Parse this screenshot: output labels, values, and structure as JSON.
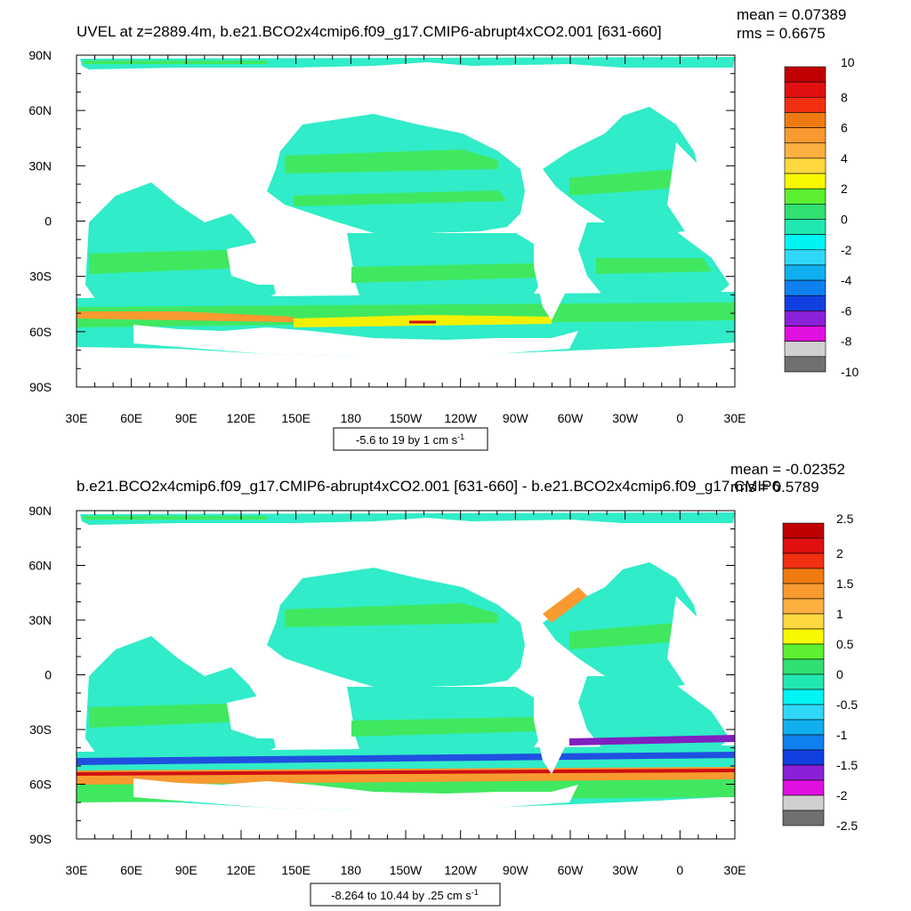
{
  "chart_data": [
    {
      "type": "heatmap",
      "title": "UVEL at z=2889.4m, b.e21.BCO2x4cmip6.f09_g17.CMIP6-abrupt4xCO2.001 [631-660]",
      "stat_mean": "mean = 0.07389",
      "stat_rms": "rms = 0.6675",
      "range_note": "-5.6 to 19 by 1 cm s",
      "range_unit_sup": "-1",
      "x_ticks": [
        "30E",
        "60E",
        "90E",
        "120E",
        "150E",
        "180",
        "150W",
        "120W",
        "90W",
        "60W",
        "30W",
        "0",
        "30E"
      ],
      "y_ticks": [
        "90N",
        "60N",
        "30N",
        "0",
        "30S",
        "60S",
        "90S"
      ],
      "colorbar_labels": [
        "10",
        "8",
        "6",
        "4",
        "2",
        "0",
        "-2",
        "-4",
        "-6",
        "-8",
        "-10"
      ],
      "colorbar_levels": [
        -10,
        -9,
        -8,
        -7,
        -6,
        -5,
        -4,
        -3,
        -2,
        -1,
        0,
        1,
        2,
        3,
        4,
        5,
        6,
        7,
        8,
        9,
        10
      ]
    },
    {
      "type": "heatmap",
      "title": "b.e21.BCO2x4cmip6.f09_g17.CMIP6-abrupt4xCO2.001 [631-660] - b.e21.BCO2x4cmip6.f09_g17.CMIP6",
      "stat_mean": "mean = -0.02352",
      "stat_rms": "rms = 0.5789",
      "range_note": "-8.264 to 10.44 by .25 cm s",
      "range_unit_sup": "-1",
      "x_ticks": [
        "30E",
        "60E",
        "90E",
        "120E",
        "150E",
        "180",
        "150W",
        "120W",
        "90W",
        "60W",
        "30W",
        "0",
        "30E"
      ],
      "y_ticks": [
        "90N",
        "60N",
        "30N",
        "0",
        "30S",
        "60S",
        "90S"
      ],
      "colorbar_labels": [
        "2.5",
        "2",
        "1.5",
        "1",
        "0.5",
        "0",
        "-0.5",
        "-1",
        "-1.5",
        "-2",
        "-2.5"
      ],
      "colorbar_levels": [
        -2.5,
        -2.25,
        -2,
        -1.75,
        -1.5,
        -1.25,
        -1,
        -0.75,
        -0.5,
        -0.25,
        0,
        0.25,
        0.5,
        0.75,
        1,
        1.25,
        1.5,
        1.75,
        2,
        2.25,
        2.5
      ]
    }
  ],
  "colors": {
    "colorbar": [
      "#c00000",
      "#e01010",
      "#f03010",
      "#ef7b10",
      "#f99a30",
      "#fcb040",
      "#fdd840",
      "#f8f800",
      "#5cf030",
      "#30e070",
      "#20e8b0",
      "#00f4f4",
      "#30d8f8",
      "#10b0f0",
      "#1080f0",
      "#1040e0",
      "#8a20d8",
      "#e010e0",
      "#d0d0d0",
      "#707070"
    ],
    "ocean_base": "#30ecc8",
    "ocean_green": "#40e860",
    "ocean_cyan": "#20f0f0",
    "jet_yellow": "#f4f000",
    "jet_orange": "#f89a30",
    "jet_red": "#d01010",
    "jet_blue": "#2050e0",
    "jet_purple": "#8020c0"
  }
}
